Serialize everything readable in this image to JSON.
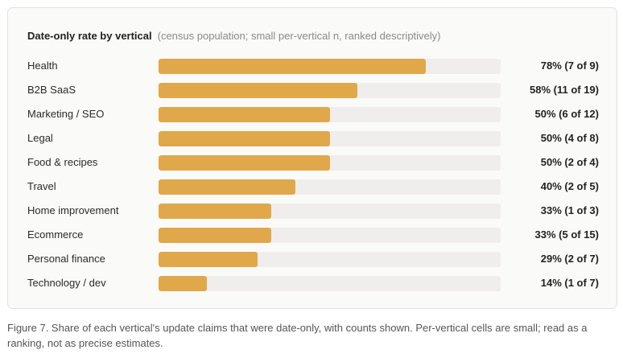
{
  "chart_data": {
    "type": "bar",
    "orientation": "horizontal",
    "title": "Date-only rate by vertical",
    "subtitle": "(census population; small per-vertical n, ranked descriptively)",
    "xlim": [
      0,
      100
    ],
    "bar_color": "#e0a84a",
    "track_color": "#efeeec",
    "categories": [
      "Health",
      "B2B SaaS",
      "Marketing / SEO",
      "Legal",
      "Food & recipes",
      "Travel",
      "Home improvement",
      "Ecommerce",
      "Personal finance",
      "Technology / dev"
    ],
    "values": [
      78,
      58,
      50,
      50,
      50,
      40,
      33,
      33,
      29,
      14
    ],
    "data_labels": [
      "78% (7 of 9)",
      "58% (11 of 19)",
      "50% (6 of 12)",
      "50% (4 of 8)",
      "50% (2 of 4)",
      "40% (2 of 5)",
      "33% (1 of 3)",
      "33% (5 of 15)",
      "29% (2 of 7)",
      "14% (1 of 7)"
    ]
  },
  "caption": "Figure 7. Share of each vertical's update claims that were date-only, with counts shown. Per-vertical cells are small; read as a ranking, not as precise estimates."
}
